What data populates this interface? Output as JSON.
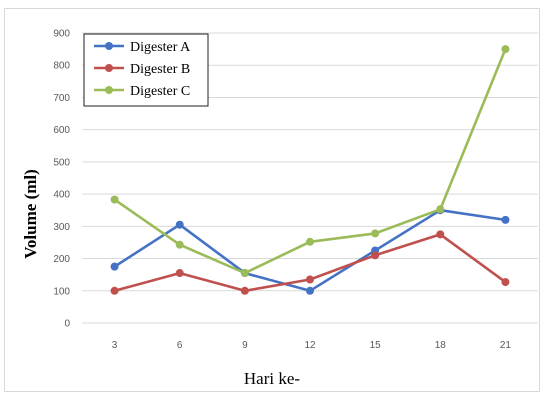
{
  "chart_data": {
    "type": "line",
    "title": "",
    "xlabel": "Hari ke-",
    "ylabel": "Volume (ml)",
    "x": [
      3,
      6,
      9,
      12,
      15,
      18,
      21
    ],
    "ylim": [
      0,
      900
    ],
    "yticks": [
      0,
      100,
      200,
      300,
      400,
      500,
      600,
      700,
      800,
      900
    ],
    "grid": true,
    "legend_position": "top-left",
    "series": [
      {
        "name": "Digester A",
        "color": "#4472c4",
        "values": [
          175,
          305,
          155,
          100,
          225,
          350,
          320
        ]
      },
      {
        "name": "Digester B",
        "color": "#c0504d",
        "values": [
          100,
          155,
          100,
          135,
          210,
          275,
          127
        ]
      },
      {
        "name": "Digester C",
        "color": "#9bbb59",
        "values": [
          383,
          243,
          155,
          252,
          278,
          353,
          850
        ]
      }
    ]
  }
}
